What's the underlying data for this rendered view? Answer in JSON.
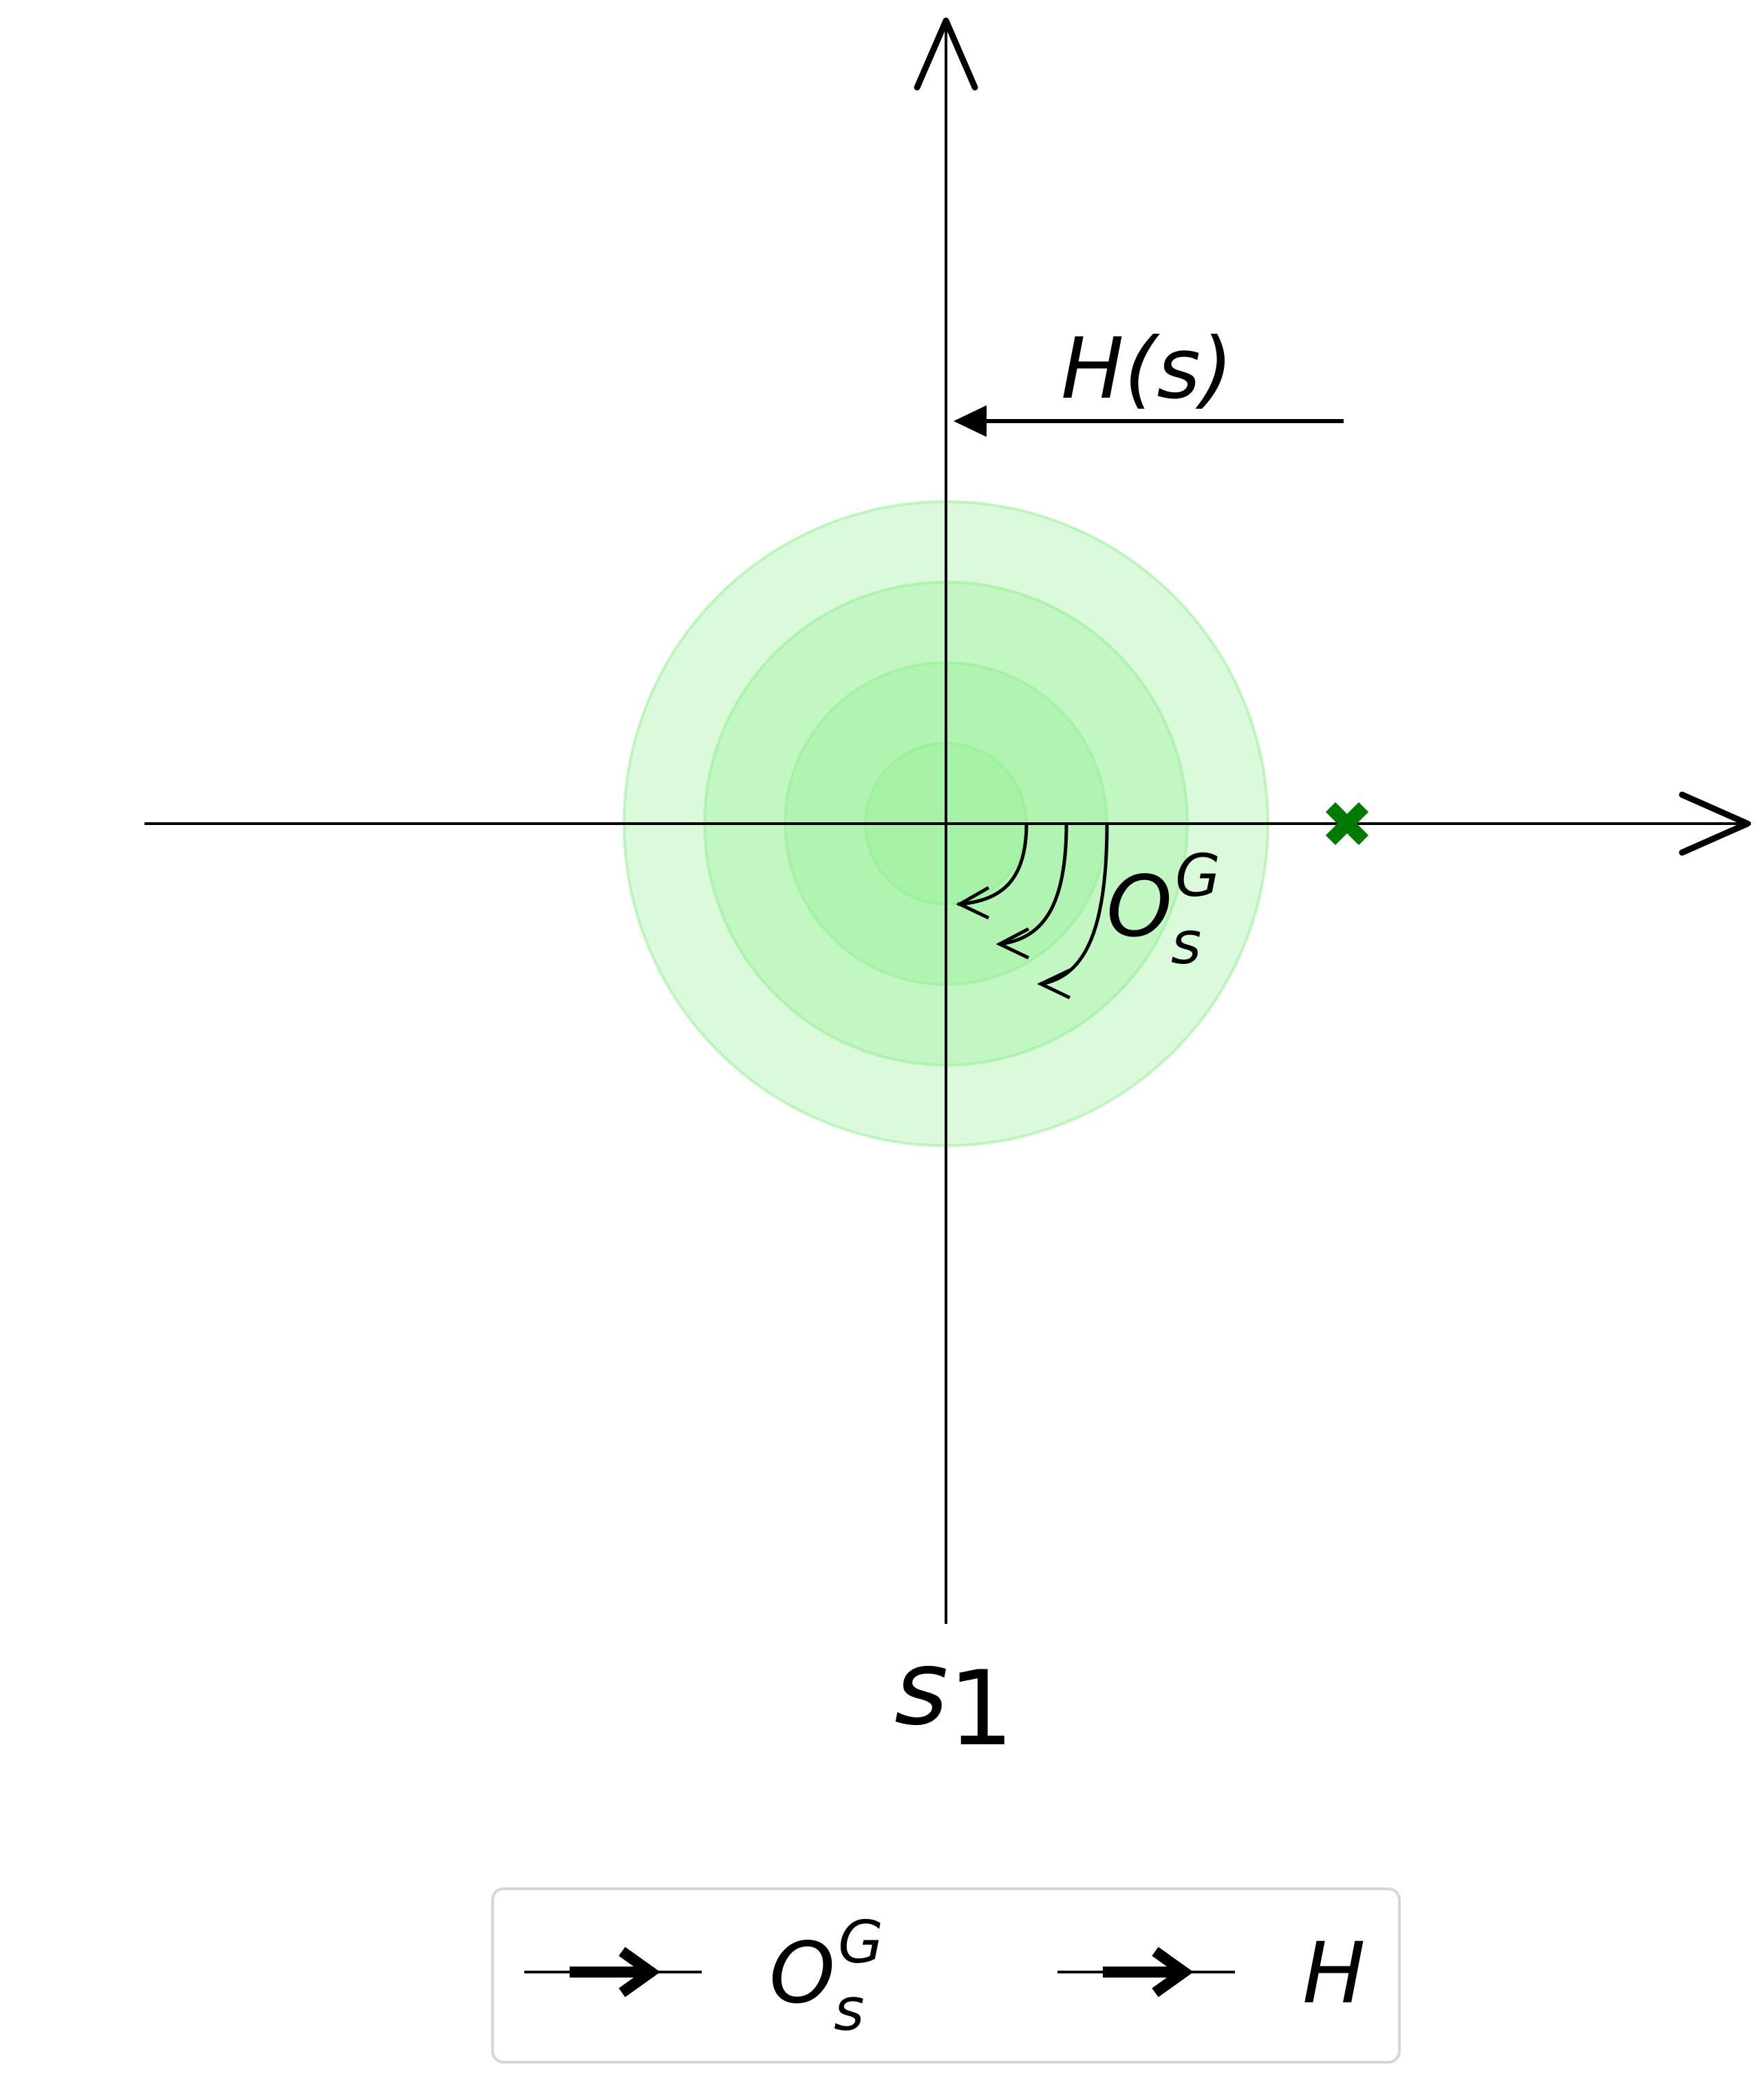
{
  "colors": {
    "disc_fill": "#90ee90",
    "disc_stroke": "#90ee90",
    "marker": "#007a00",
    "ink": "#000000",
    "legend_border": "#d6d6d6"
  },
  "diagram": {
    "subspace_label": {
      "base": "s",
      "sub": "1"
    },
    "hs_arrow_label": {
      "name": "H",
      "arg": "(s)"
    },
    "og_label": {
      "base": "O",
      "sub": "s",
      "sup": "G"
    },
    "discs": 4,
    "marker_icon": "x-cross-marker"
  },
  "legend": {
    "items": [
      {
        "icon": "arrow-right-icon",
        "base": "O",
        "sub": "s",
        "sup": "G"
      },
      {
        "icon": "arrow-right-icon",
        "base": "H"
      }
    ]
  }
}
